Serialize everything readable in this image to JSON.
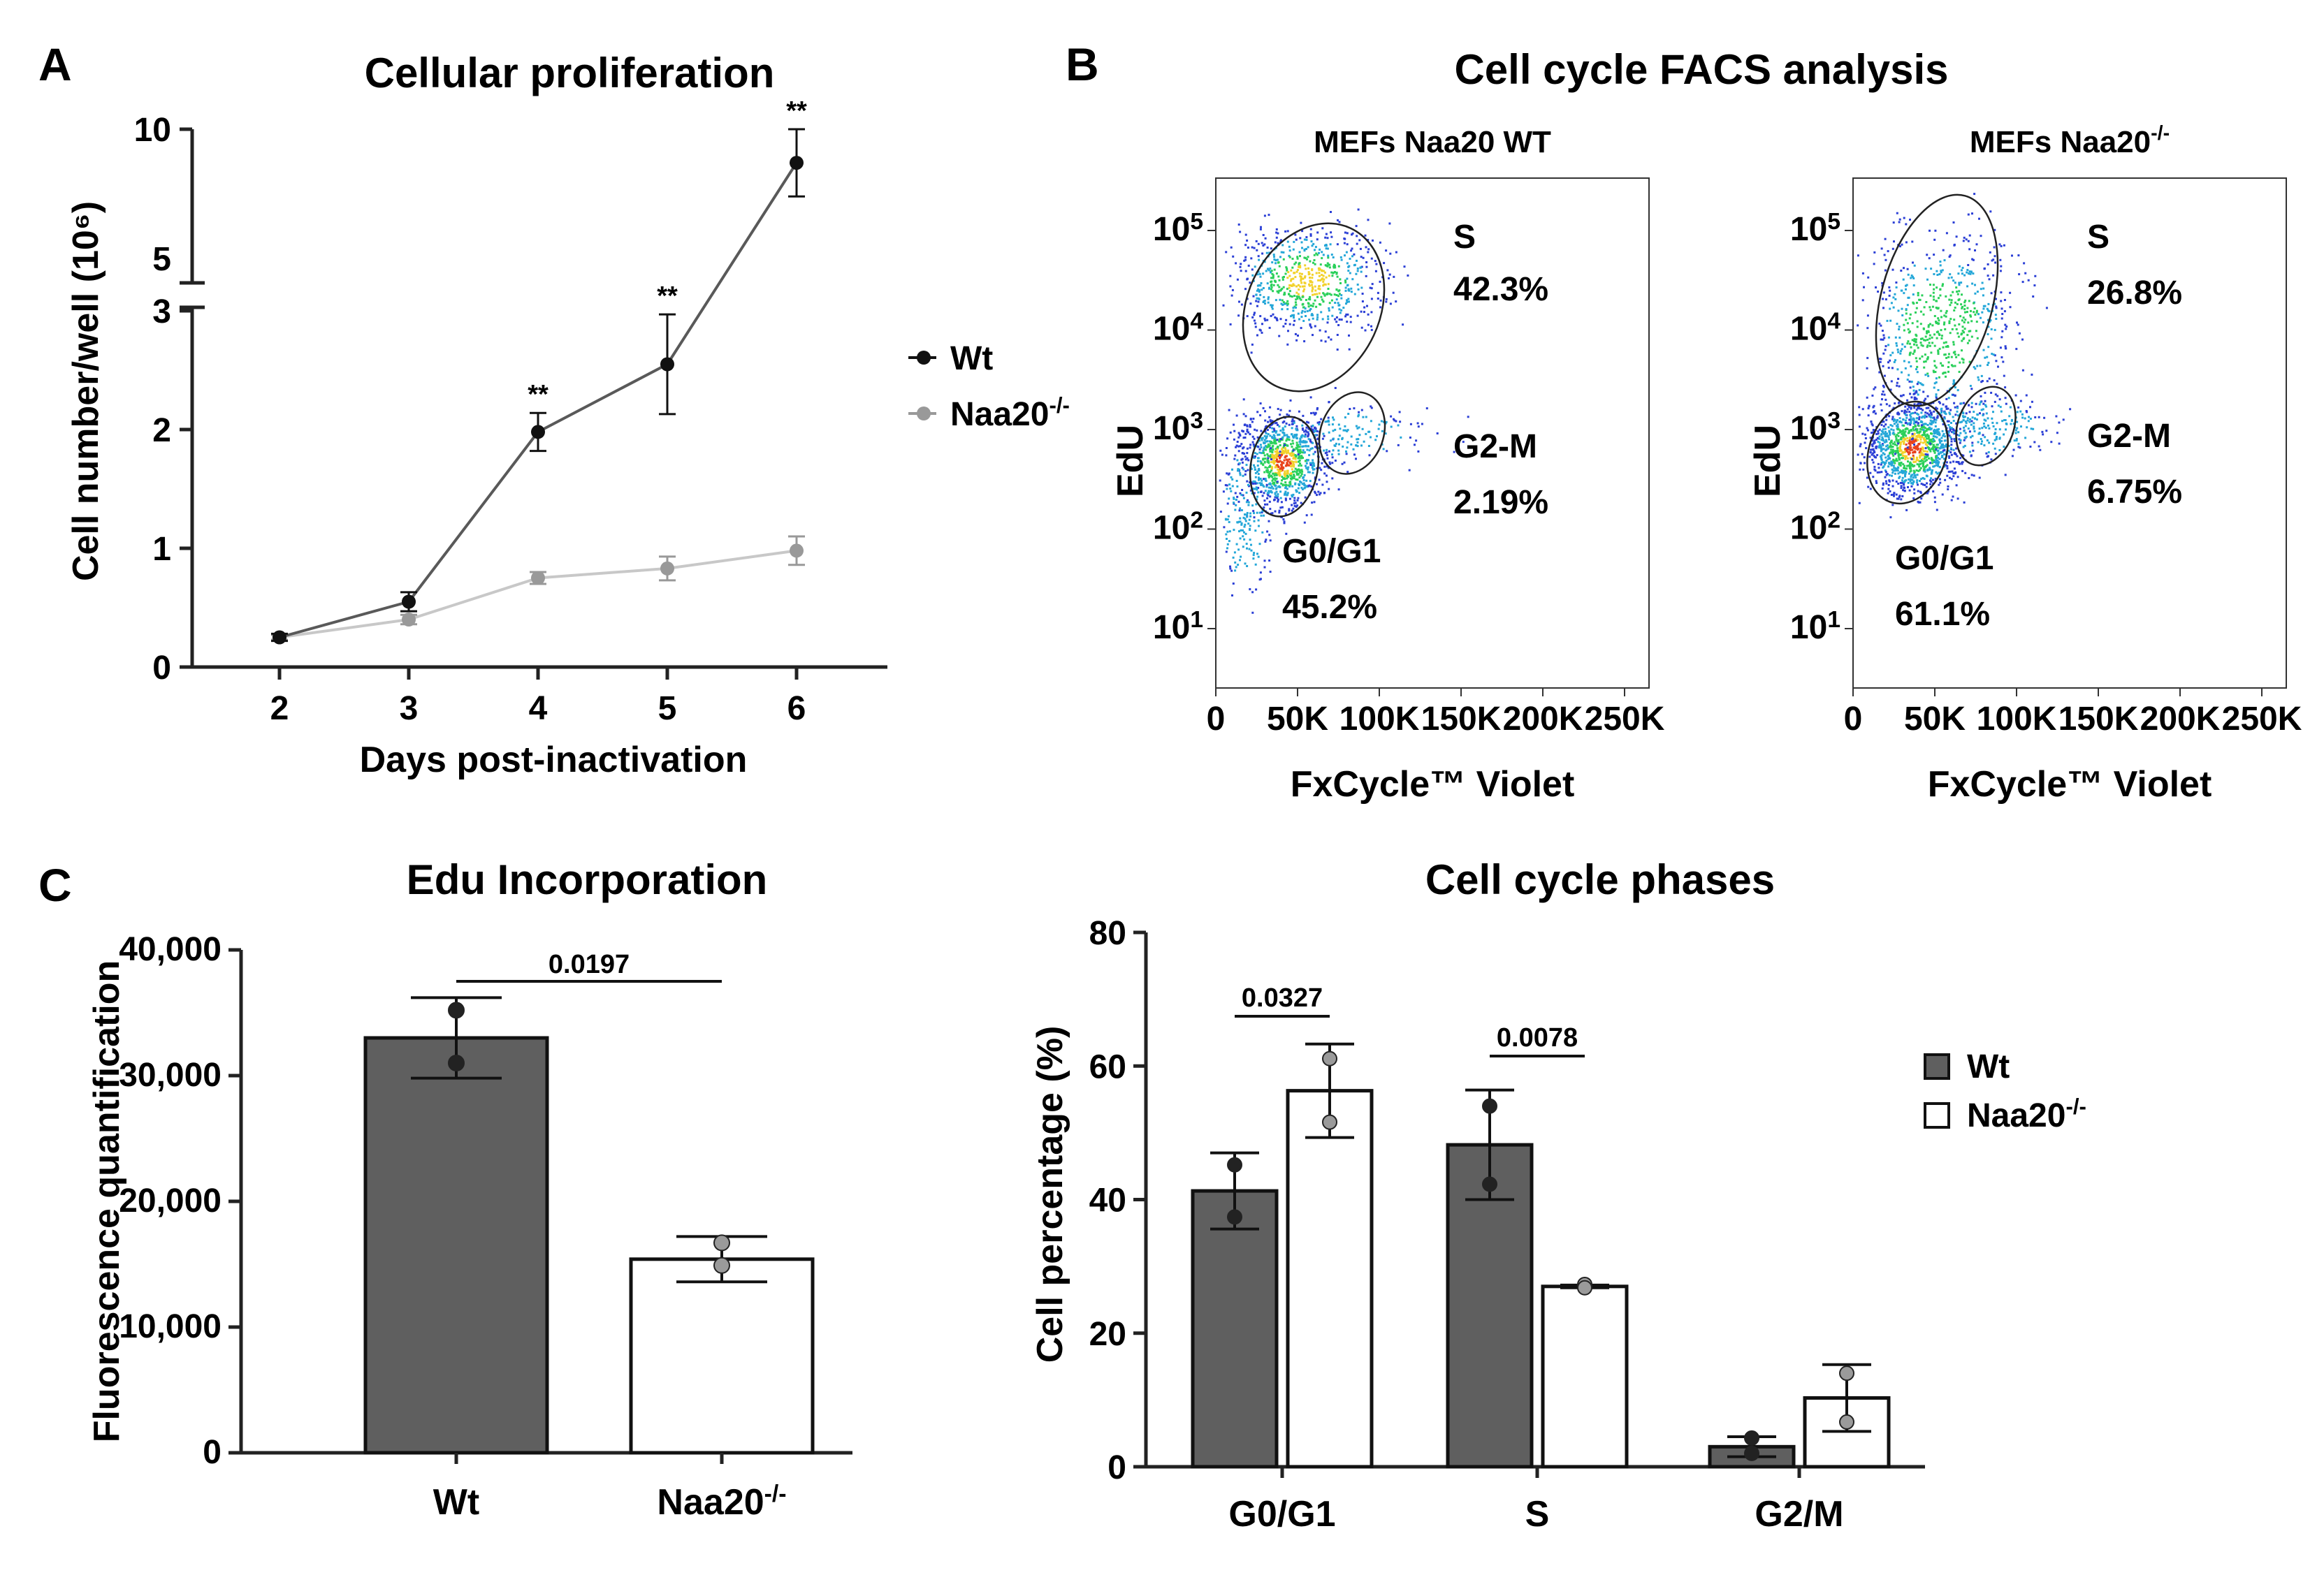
{
  "panels": {
    "A": "A",
    "B": "B",
    "C": "C"
  },
  "colors": {
    "wt": "#595959",
    "naa20_line": "#c8c8c8",
    "naa20_marker": "#999999",
    "dark": "#222222",
    "bar_wt": "#5f5f5f",
    "bar_naa20": "#ffffff"
  },
  "chart_data": [
    {
      "id": "proliferation",
      "type": "line",
      "title": "Cellular proliferation",
      "xlabel": "Days post-inactivation",
      "ylabel": "Cell number/well (10⁶)",
      "x": [
        2,
        3,
        4,
        5,
        6
      ],
      "yticks_lower": [
        "0",
        "1",
        "2",
        "3"
      ],
      "yticks_upper": [
        "5",
        "10"
      ],
      "axis_break": [
        3,
        5
      ],
      "ylim": [
        0,
        10
      ],
      "series": [
        {
          "name": "Wt",
          "values": [
            0.25,
            0.55,
            1.98,
            2.55,
            8.7
          ],
          "err": [
            0.03,
            0.08,
            0.16,
            0.42,
            1.3
          ],
          "color": "#595959"
        },
        {
          "name": "Naa20-/-",
          "values": [
            0.25,
            0.4,
            0.75,
            0.83,
            0.98
          ],
          "err": [
            0.02,
            0.04,
            0.05,
            0.1,
            0.12
          ],
          "color": "#c8c8c8"
        }
      ],
      "significance": [
        {
          "x": 4,
          "label": "**"
        },
        {
          "x": 5,
          "label": "**"
        },
        {
          "x": 6,
          "label": "**"
        }
      ],
      "legend": [
        "Wt",
        "Naa20-/-"
      ],
      "legend_position": "right"
    },
    {
      "id": "facs",
      "type": "scatter",
      "title": "Cell cycle FACS analysis",
      "xlabel": "FxCycle™ Violet",
      "ylabel": "EdU",
      "xticks": [
        "0",
        "50K",
        "100K",
        "150K",
        "200K",
        "250K"
      ],
      "yticks": [
        "10¹",
        "10²",
        "10³",
        "10⁴",
        "10⁵"
      ],
      "plots": [
        {
          "subtitle": "MEFs Naa20 WT",
          "gates": [
            {
              "name": "S",
              "percent": "42.3%"
            },
            {
              "name": "G2-M",
              "percent": "2.19%"
            },
            {
              "name": "G0/G1",
              "percent": "45.2%"
            }
          ]
        },
        {
          "subtitle": "MEFs Naa20-/-",
          "gates": [
            {
              "name": "S",
              "percent": "26.8%"
            },
            {
              "name": "G2-M",
              "percent": "6.75%"
            },
            {
              "name": "G0/G1",
              "percent": "61.1%"
            }
          ]
        }
      ]
    },
    {
      "id": "edu",
      "type": "bar",
      "title": "Edu Incorporation",
      "ylabel": "Fluorescence quantification",
      "categories": [
        "Wt",
        "Naa20-/-"
      ],
      "values": [
        33000,
        15400
      ],
      "err": [
        3200,
        1800
      ],
      "points": [
        [
          35200,
          31000
        ],
        [
          16700,
          14900
        ]
      ],
      "ylim": [
        0,
        40000
      ],
      "yticks": [
        "0",
        "10,000",
        "20,000",
        "30,000",
        "40,000"
      ],
      "pvalue": "0.0197"
    },
    {
      "id": "phases",
      "type": "bar",
      "title": "Cell cycle phases",
      "ylabel": "Cell percentage (%)",
      "categories": [
        "G0/G1",
        "S",
        "G2/M"
      ],
      "ylim": [
        0,
        80
      ],
      "yticks": [
        "0",
        "20",
        "40",
        "60",
        "80"
      ],
      "series": [
        {
          "name": "Wt",
          "values": [
            41.3,
            48.2,
            3.0
          ],
          "err": [
            5.7,
            8.2,
            1.5
          ],
          "points": [
            [
              45.2,
              37.4
            ],
            [
              54.0,
              42.3
            ],
            [
              4.3,
              2.0
            ]
          ]
        },
        {
          "name": "Naa20-/-",
          "values": [
            56.3,
            27.0,
            10.3
          ],
          "err": [
            7.0,
            0.2,
            5.0
          ],
          "points": [
            [
              61.1,
              51.6
            ],
            [
              27.3,
              26.8
            ],
            [
              14.0,
              6.7
            ]
          ]
        }
      ],
      "pvalues": [
        {
          "category": "G0/G1",
          "label": "0.0327"
        },
        {
          "category": "S",
          "label": "0.0078"
        }
      ],
      "legend": [
        "Wt",
        "Naa20-/-"
      ],
      "legend_position": "right"
    }
  ]
}
